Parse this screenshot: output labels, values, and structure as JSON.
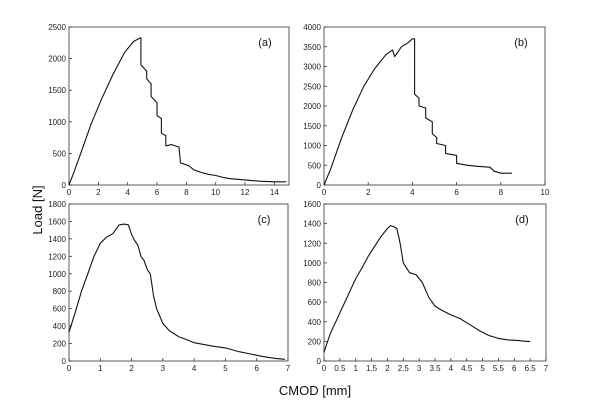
{
  "figure": {
    "xlabel": "CMOD [mm]",
    "ylabel": "Load [N]"
  },
  "chart_data": [
    {
      "type": "line",
      "panel_label": "(a)",
      "xlim": [
        0,
        15
      ],
      "ylim": [
        0,
        2500
      ],
      "xticks": [
        0,
        2,
        4,
        6,
        8,
        10,
        12,
        14
      ],
      "yticks": [
        0,
        500,
        1000,
        1500,
        2000,
        2500
      ],
      "grid": false,
      "series": [
        {
          "x": [
            0,
            0.3,
            0.8,
            1.5,
            2.2,
            3.0,
            3.8,
            4.4,
            4.8,
            4.9,
            4.9,
            5.3,
            5.3,
            5.6,
            5.6,
            6.0,
            6.0,
            6.3,
            6.3,
            6.6,
            6.6,
            7.0,
            7.5,
            7.6,
            8.0,
            8.2,
            8.5,
            9.0,
            9.5,
            10.0,
            10.5,
            11.0,
            12.0,
            13.0,
            14.0,
            14.8
          ],
          "y": [
            0,
            180,
            500,
            960,
            1350,
            1750,
            2100,
            2270,
            2320,
            2330,
            1900,
            1800,
            1680,
            1600,
            1400,
            1300,
            1100,
            1050,
            820,
            780,
            620,
            640,
            600,
            350,
            320,
            300,
            240,
            200,
            170,
            150,
            120,
            100,
            80,
            60,
            50,
            50
          ]
        }
      ]
    },
    {
      "type": "line",
      "panel_label": "(b)",
      "xlim": [
        0,
        10
      ],
      "ylim": [
        0,
        4000
      ],
      "xticks": [
        0,
        2,
        4,
        6,
        8,
        10
      ],
      "yticks": [
        0,
        500,
        1000,
        1500,
        2000,
        2500,
        3000,
        3500,
        4000
      ],
      "grid": false,
      "series": [
        {
          "x": [
            0,
            0.3,
            0.8,
            1.3,
            1.8,
            2.3,
            2.8,
            3.1,
            3.2,
            3.5,
            3.8,
            4.0,
            4.1,
            4.1,
            4.3,
            4.3,
            4.6,
            4.6,
            4.9,
            4.9,
            5.1,
            5.1,
            5.5,
            5.5,
            6.0,
            6.0,
            6.5,
            7.0,
            7.5,
            7.7,
            8.0,
            8.5
          ],
          "y": [
            0,
            400,
            1200,
            1900,
            2500,
            2950,
            3300,
            3420,
            3250,
            3500,
            3600,
            3700,
            3700,
            2300,
            2200,
            2000,
            1950,
            1700,
            1600,
            1300,
            1200,
            1050,
            1000,
            800,
            750,
            550,
            500,
            470,
            450,
            350,
            300,
            300
          ]
        }
      ]
    },
    {
      "type": "line",
      "panel_label": "(c)",
      "xlim": [
        0,
        7
      ],
      "ylim": [
        0,
        1800
      ],
      "xticks": [
        0,
        1,
        2,
        3,
        4,
        5,
        6,
        7
      ],
      "yticks": [
        0,
        200,
        400,
        600,
        800,
        1000,
        1200,
        1400,
        1600,
        1800
      ],
      "grid": false,
      "series": [
        {
          "x": [
            0,
            0.2,
            0.4,
            0.6,
            0.8,
            1.0,
            1.2,
            1.4,
            1.6,
            1.75,
            1.9,
            2.0,
            2.1,
            2.2,
            2.3,
            2.4,
            2.5,
            2.6,
            2.7,
            2.8,
            3.0,
            3.2,
            3.5,
            3.8,
            4.0,
            4.3,
            4.6,
            5.0,
            5.4,
            5.8,
            6.2,
            6.6,
            6.9
          ],
          "y": [
            330,
            560,
            800,
            1000,
            1200,
            1350,
            1420,
            1460,
            1560,
            1570,
            1560,
            1450,
            1380,
            1330,
            1200,
            1150,
            1050,
            1000,
            750,
            600,
            430,
            350,
            280,
            240,
            210,
            190,
            170,
            150,
            110,
            80,
            50,
            30,
            20
          ]
        }
      ]
    },
    {
      "type": "line",
      "panel_label": "(d)",
      "xlim": [
        0,
        7
      ],
      "ylim": [
        0,
        1600
      ],
      "xticks": [
        0,
        0.5,
        1,
        1.5,
        2,
        2.5,
        3,
        3.5,
        4,
        4.5,
        5,
        5.5,
        6,
        6.5,
        7
      ],
      "yticks": [
        0,
        200,
        400,
        600,
        800,
        1000,
        1200,
        1400,
        1600
      ],
      "grid": false,
      "series": [
        {
          "x": [
            0,
            0.2,
            0.4,
            0.6,
            0.8,
            1.0,
            1.2,
            1.4,
            1.6,
            1.8,
            2.0,
            2.1,
            2.2,
            2.3,
            2.4,
            2.5,
            2.7,
            2.9,
            3.1,
            3.3,
            3.5,
            3.7,
            4.0,
            4.3,
            4.6,
            4.9,
            5.2,
            5.5,
            5.8,
            6.1,
            6.4,
            6.5
          ],
          "y": [
            90,
            280,
            420,
            560,
            700,
            840,
            950,
            1070,
            1170,
            1270,
            1350,
            1380,
            1370,
            1350,
            1200,
            1000,
            900,
            880,
            800,
            650,
            560,
            520,
            470,
            430,
            370,
            310,
            260,
            230,
            215,
            210,
            200,
            200
          ]
        }
      ]
    }
  ]
}
